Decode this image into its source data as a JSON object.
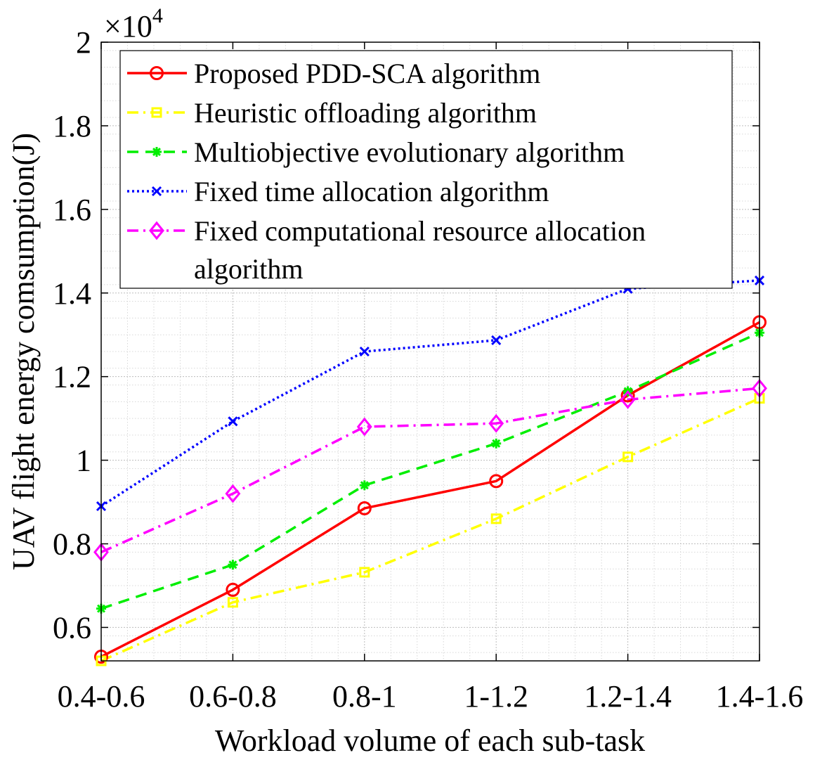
{
  "chart_data": {
    "type": "line",
    "title": "",
    "xlabel": "Workload volume of each sub-task",
    "ylabel": "UAV flight energy comsumption(J)",
    "categories": [
      "0.4-0.6",
      "0.6-0.8",
      "0.8-1",
      "1-1.2",
      "1.2-1.4",
      "1.4-1.6"
    ],
    "ylim": [
      0.52,
      2.0
    ],
    "yticks": [
      0.6,
      0.8,
      1,
      1.2,
      1.4,
      1.6,
      1.8,
      2
    ],
    "ytick_labels": [
      "0.6",
      "0.8",
      "1",
      "1.2",
      "1.4",
      "1.6",
      "1.8",
      "2"
    ],
    "y_multiplier_base": "×10",
    "y_multiplier_exp": "4",
    "grid": true,
    "minor_grid": true,
    "legend_position": "top",
    "series": [
      {
        "name": "Proposed PDD-SCA algorithm",
        "color": "#ff0000",
        "dash": "solid",
        "marker": "circle",
        "values": [
          0.53,
          0.69,
          0.885,
          0.95,
          1.155,
          1.33
        ]
      },
      {
        "name": "Heuristic offloading algorithm",
        "color": "#ffff00",
        "dash": "dashdot",
        "marker": "square",
        "values": [
          0.52,
          0.66,
          0.732,
          0.86,
          1.008,
          1.148
        ]
      },
      {
        "name": "Multiobjective evolutionary algorithm",
        "color": "#00ee00",
        "dash": "dashed",
        "marker": "star",
        "values": [
          0.645,
          0.75,
          0.94,
          1.04,
          1.165,
          1.305
        ]
      },
      {
        "name": "Fixed time allocation algorithm",
        "color": "#0000ff",
        "dash": "dotted",
        "marker": "x",
        "values": [
          0.89,
          1.093,
          1.26,
          1.287,
          1.41,
          1.43
        ]
      },
      {
        "name": "Fixed computational resource allocation",
        "name_line2": "algorithm",
        "color": "#ff00ff",
        "dash": "dashdot",
        "marker": "diamond",
        "values": [
          0.78,
          0.92,
          1.08,
          1.088,
          1.145,
          1.172
        ]
      }
    ]
  }
}
